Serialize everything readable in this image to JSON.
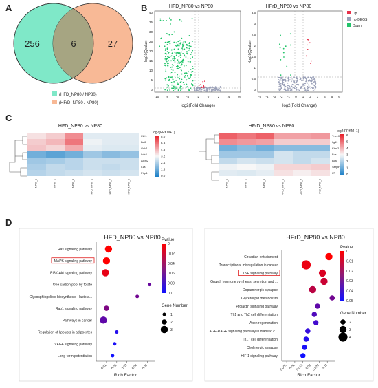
{
  "panels": {
    "A": "A",
    "B": "B",
    "C": "C",
    "D": "D"
  },
  "venn": {
    "left_only": "256",
    "overlap": "6",
    "right_only": "27",
    "legend": [
      "(HFD_NP80 / NP80)",
      "(HFrD_NP80 / NP80)"
    ],
    "colors": {
      "left": "#7fe8c8",
      "right": "#f8b996",
      "overlap": "#a6a582"
    }
  },
  "volcano": {
    "left_title": "HFD_NP80 vs NP80",
    "right_title": "HFrD_NP80 vs NP80",
    "ylabel": "-log10(Qvalue)",
    "xlabel": "log2(Fold Change)",
    "left_xticks": [
      "-10",
      "-8",
      "-6",
      "-4",
      "-2",
      "0",
      "2",
      "4",
      "%"
    ],
    "left_yticks": [
      "40",
      "35",
      "30",
      "25",
      "20",
      "15",
      "10",
      "5",
      "0"
    ],
    "right_xticks": [
      "-5",
      "-4",
      "-3",
      "-2",
      "-1",
      "0",
      "1",
      "2",
      "3",
      "4",
      "5",
      "6"
    ],
    "right_yticks": [
      "3.5",
      "3",
      "2.5",
      "2",
      "1.5",
      "1",
      "0.5",
      "0"
    ],
    "legend": [
      "Up",
      "no-DEGS",
      "Down"
    ],
    "colors": {
      "up": "#e8304a",
      "none": "#9aa0b8",
      "down": "#22c46a"
    }
  },
  "heatmap": {
    "left_title": "HFD_NP80 vs NP80",
    "right_title": "HFrD_NP80 vs NP80",
    "left_rows": [
      "Il1rl1",
      "Bcl6",
      "Gnb1",
      "Ldlr2",
      "Atxnl2",
      "Il1a",
      "Ptgr1"
    ],
    "right_rows": [
      "Tnc1002",
      "Ilg11",
      "Kbnl2",
      "Fos",
      "Bcl6",
      "Serpine1",
      "Il7r"
    ],
    "left_cols": [
      "NP80_1",
      "NP80_2",
      "NP80_3",
      "HFD_NP80_1",
      "HFD_NP80_2",
      "HFD_NP80_3"
    ],
    "right_cols": [
      "NP80_1",
      "NP80_2",
      "NP80_3",
      "HFrD_NP80_1",
      "HFrD_NP80_2",
      "HFrD_NP80_3"
    ],
    "legend_title": "log2(FPKM+1)",
    "left_scale": [
      "8.0",
      "6.4",
      "4.8",
      "3.2",
      "2.4",
      "1.6",
      "0.0"
    ],
    "right_scale": [
      "6",
      "5",
      "4",
      "3",
      "2",
      "1",
      "0"
    ]
  },
  "chart_data": [
    {
      "type": "scatter",
      "title": "HFD_NP80 vs NP80",
      "xlabel": "Rich Factor",
      "categories": [
        "Ras signaling pathway",
        "MAPK signaling pathway",
        "PI3K-Akt signaling pathway",
        "One carbon pool by folate",
        "Glycosphingolipid biosynthesis - lacto a...",
        "Rap1 signaling pathway",
        "Pathways in cancer",
        "Regulation of lipolysis in adipocytes",
        "VEGF signaling pathway",
        "Long-term potentiation"
      ],
      "highlight": "MAPK signaling pathway",
      "points": [
        {
          "x": 0.012,
          "p": 0.0,
          "n": 3
        },
        {
          "x": 0.01,
          "p": 0.0,
          "n": 3
        },
        {
          "x": 0.009,
          "p": 0.005,
          "n": 3
        },
        {
          "x": 0.052,
          "p": 0.045,
          "n": 1
        },
        {
          "x": 0.04,
          "p": 0.04,
          "n": 1
        },
        {
          "x": 0.01,
          "p": 0.035,
          "n": 2
        },
        {
          "x": 0.007,
          "p": 0.05,
          "n": 3
        },
        {
          "x": 0.02,
          "p": 0.09,
          "n": 1
        },
        {
          "x": 0.018,
          "p": 0.095,
          "n": 1
        },
        {
          "x": 0.016,
          "p": 0.1,
          "n": 1
        }
      ],
      "xticks": [
        "0.01",
        "0.02",
        "0.03",
        "0.04",
        "0.05"
      ],
      "xlim": [
        0.0,
        0.057
      ],
      "pvalue_title": "Pvalue",
      "pvalue_ticks": [
        "0",
        "0.02",
        "0.04",
        "0.06",
        "0.08",
        "0.1"
      ],
      "pvalue_range": [
        0,
        0.1
      ],
      "gene_number_title": "Gene Number",
      "gene_numbers": [
        1,
        2,
        3
      ]
    },
    {
      "type": "scatter",
      "title": "HFrD_NP80 vs NP80",
      "xlabel": "Rich Factor",
      "categories": [
        "Circadian entrainment",
        "Transcriptional misregulation in cancer",
        "TNF signaling pathway",
        "Growth hormone synthesis, secretion and ...",
        "Dopaminergic synapse",
        "Glycerolipid metabolism",
        "Prolactin signaling pathway",
        "Th1 and Th2 cell differentiation",
        "Axon regeneration",
        "AGE-RAGE signaling pathway in diabetic c...",
        "Th17 cell differentiation",
        "Cholinergic synapse",
        "HIF-1 signaling pathway"
      ],
      "highlight": "TNF signaling pathway",
      "points": [
        {
          "x": 0.031,
          "p": 0.0,
          "n": 3
        },
        {
          "x": 0.017,
          "p": 0.002,
          "n": 4
        },
        {
          "x": 0.027,
          "p": 0.004,
          "n": 3
        },
        {
          "x": 0.028,
          "p": 0.006,
          "n": 3
        },
        {
          "x": 0.021,
          "p": 0.008,
          "n": 3
        },
        {
          "x": 0.033,
          "p": 0.02,
          "n": 2
        },
        {
          "x": 0.024,
          "p": 0.025,
          "n": 2
        },
        {
          "x": 0.022,
          "p": 0.03,
          "n": 2
        },
        {
          "x": 0.023,
          "p": 0.035,
          "n": 2
        },
        {
          "x": 0.018,
          "p": 0.04,
          "n": 2
        },
        {
          "x": 0.017,
          "p": 0.045,
          "n": 2
        },
        {
          "x": 0.016,
          "p": 0.048,
          "n": 2
        },
        {
          "x": 0.015,
          "p": 0.05,
          "n": 2
        }
      ],
      "xticks": [
        "0.005",
        "0.01",
        "0.015",
        "0.02",
        "0.025",
        "0.03"
      ],
      "xlim": [
        0.002,
        0.035
      ],
      "pvalue_title": "Pvalue",
      "pvalue_ticks": [
        "0",
        "0.01",
        "0.02",
        "0.03",
        "0.04",
        "0.05"
      ],
      "pvalue_range": [
        0,
        0.05
      ],
      "gene_number_title": "Gene Number",
      "gene_numbers": [
        2,
        3,
        4
      ]
    }
  ]
}
